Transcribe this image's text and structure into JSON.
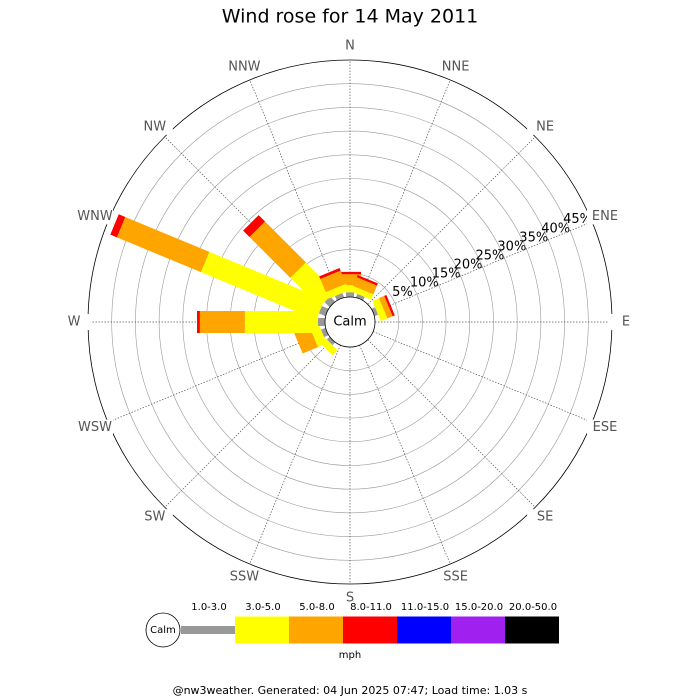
{
  "chart_data": {
    "type": "windrose",
    "title": "Wind rose for 14 May 2011",
    "categories": [
      "N",
      "NNE",
      "NE",
      "ENE",
      "E",
      "ESE",
      "SE",
      "SSE",
      "S",
      "SSW",
      "SW",
      "WSW",
      "W",
      "WNW",
      "NW",
      "NNW"
    ],
    "series": [
      {
        "name": "1.0-3.0",
        "color": "#999999",
        "values": [
          1,
          0.8,
          0,
          0.8,
          0,
          0,
          0,
          0,
          0,
          0,
          0.8,
          1,
          1.5,
          1.5,
          1.5,
          1
        ]
      },
      {
        "name": "3.0-5.0",
        "color": "#ffff00",
        "values": [
          1.5,
          1.2,
          0,
          1.5,
          0,
          0,
          0,
          0,
          0,
          0,
          1.5,
          2,
          15.4,
          26.3,
          8.7,
          1.5
        ]
      },
      {
        "name": "5.0-8.0",
        "color": "#ffa500",
        "values": [
          2.3,
          2,
          0,
          1.2,
          0,
          0,
          0,
          0,
          0,
          0,
          0,
          3.5,
          9.5,
          19.2,
          12.2,
          3
        ]
      },
      {
        "name": "8.0-11.0",
        "color": "#ff0000",
        "values": [
          0.5,
          0.5,
          0,
          0.5,
          0,
          0,
          0,
          0,
          0,
          0,
          0,
          0,
          0.6,
          1.5,
          1.9,
          0.6
        ]
      },
      {
        "name": "11.0-15.0",
        "color": "#0000ff",
        "values": [
          0,
          0,
          0,
          0,
          0,
          0,
          0,
          0,
          0,
          0,
          0,
          0,
          0,
          0,
          0,
          0
        ]
      },
      {
        "name": "15.0-20.0",
        "color": "#a020f0",
        "values": [
          0,
          0,
          0,
          0,
          0,
          0,
          0,
          0,
          0,
          0,
          0,
          0,
          0,
          0,
          0,
          0
        ]
      },
      {
        "name": "20.0-50.0",
        "color": "#000000",
        "values": [
          0,
          0,
          0,
          0,
          0,
          0,
          0,
          0,
          0,
          0,
          0,
          0,
          0,
          0,
          0,
          0
        ]
      }
    ],
    "rlim": [
      0,
      50
    ],
    "rticks": [
      {
        "value": 5,
        "label": "5%"
      },
      {
        "value": 10,
        "label": "10%"
      },
      {
        "value": 15,
        "label": "15%"
      },
      {
        "value": 20,
        "label": "20%"
      },
      {
        "value": 25,
        "label": "25%"
      },
      {
        "value": 30,
        "label": "30%"
      },
      {
        "value": 35,
        "label": "35%"
      },
      {
        "value": 40,
        "label": "40%"
      },
      {
        "value": 45,
        "label": "45%"
      }
    ],
    "calm_label": "Calm",
    "units": "mph",
    "footer": "@nw3weather. Generated: 04 Jun 2025 07:47; Load time: 1.03 s"
  }
}
